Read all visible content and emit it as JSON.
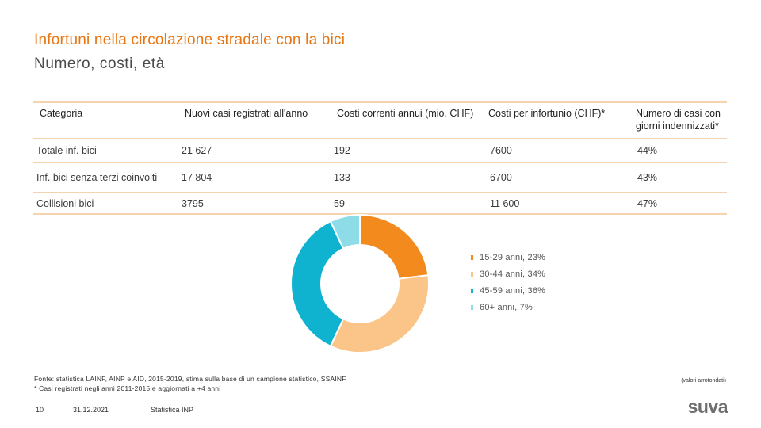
{
  "header": {
    "title": "Infortuni nella circolazione stradale con la bici",
    "subtitle": "Numero, costi, età"
  },
  "table": {
    "headers": [
      "Categoria",
      "Nuovi casi registrati all'anno",
      "Costi correnti annui (mio. CHF)",
      "Costi per infortunio (CHF)*",
      "Numero di casi con giorni indennizzati*"
    ],
    "rows": [
      [
        "Totale inf. bici",
        "21 627",
        "192",
        "7600",
        "44%"
      ],
      [
        "Inf. bici senza terzi coinvolti",
        "17 804",
        "133",
        "6700",
        "43%"
      ],
      [
        "Collisioni bici",
        "3795",
        "59",
        "11 600",
        "47%"
      ]
    ]
  },
  "chart_data": {
    "type": "pie",
    "donut": true,
    "title": "",
    "categories": [
      "15-29 anni",
      "30-44 anni",
      "45-59 anni",
      "60+ anni"
    ],
    "values": [
      23,
      34,
      36,
      7
    ],
    "unit": "%",
    "colors": [
      "#f28a1e",
      "#fbc58a",
      "#10b3cf",
      "#8ddce8"
    ],
    "legend": [
      "15-29 anni, 23%",
      "30-44 anni, 34%",
      "45-59 anni, 36%",
      "60+ anni, 7%"
    ],
    "legend_position": "right"
  },
  "footnotes": {
    "source": "Fonte: statistica LAINF, AINP e AID, 2015-2019, stima sulla base di un campione statistico, SSAINF",
    "asterisk": "* Casi registrati negli anni 2011-2015 e aggiornati a +4 anni",
    "rounded": "(valori arrotondati)"
  },
  "footer": {
    "page_number": "10",
    "date": "31.12.2021",
    "label": "Statistica INP",
    "logo": "suva"
  }
}
